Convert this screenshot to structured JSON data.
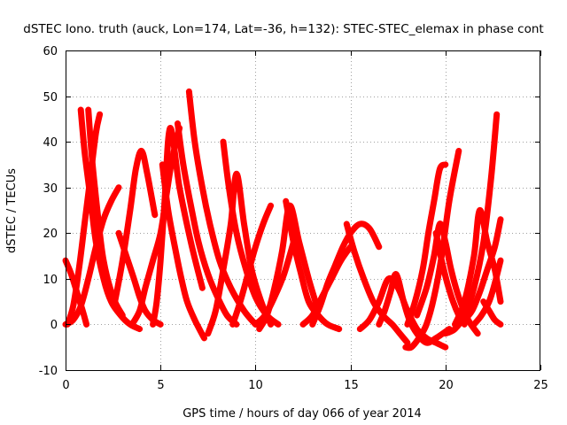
{
  "chart_data": {
    "type": "line",
    "title": "dSTEC Iono. truth (auck, Lon=174, Lat=-36, h=132): STEC-STEC_elemax in phase cont",
    "xlabel": "GPS time / hours of day 066 of year 2014",
    "ylabel": "dSTEC  / TECUs",
    "xlim": [
      0,
      25
    ],
    "ylim": [
      -10,
      60
    ],
    "xticks": [
      0,
      5,
      10,
      15,
      20,
      25
    ],
    "yticks": [
      -10,
      0,
      10,
      20,
      30,
      40,
      50,
      60
    ],
    "grid": true,
    "legend": "none",
    "color": "#ff0000",
    "marker": "plus",
    "series": [
      {
        "x": [
          0.0,
          0.3,
          0.6,
          0.9,
          1.1
        ],
        "y": [
          14,
          11,
          7,
          3,
          0
        ]
      },
      {
        "x": [
          0.0,
          0.4,
          0.8,
          1.2,
          1.6,
          2.0,
          2.4,
          2.8
        ],
        "y": [
          0,
          1,
          4,
          10,
          17,
          23,
          27,
          30
        ]
      },
      {
        "x": [
          0.8,
          1.0,
          1.3,
          1.6,
          2.0,
          2.4,
          2.9,
          3.4,
          3.9
        ],
        "y": [
          47,
          38,
          28,
          18,
          10,
          5,
          2,
          0,
          -1
        ]
      },
      {
        "x": [
          1.2,
          1.4,
          1.7,
          2.0,
          2.5,
          3.0
        ],
        "y": [
          47,
          36,
          24,
          14,
          6,
          2
        ]
      },
      {
        "x": [
          0.1,
          0.4,
          0.7,
          1.0,
          1.3,
          1.6,
          1.8
        ],
        "y": [
          0,
          4,
          12,
          22,
          32,
          42,
          46
        ]
      },
      {
        "x": [
          2.8,
          3.2,
          3.6,
          3.9,
          4.2,
          4.6,
          5.0
        ],
        "y": [
          20,
          15,
          10,
          6,
          3,
          1,
          0
        ]
      },
      {
        "x": [
          2.6,
          3.0,
          3.4,
          3.7,
          4.0,
          4.3,
          4.7
        ],
        "y": [
          5,
          14,
          25,
          34,
          38,
          33,
          24
        ]
      },
      {
        "x": [
          3.5,
          3.9,
          4.2,
          4.6,
          5.0,
          5.3,
          5.6,
          6.0
        ],
        "y": [
          0,
          3,
          8,
          14,
          20,
          28,
          36,
          43
        ]
      },
      {
        "x": [
          4.6,
          4.8,
          5.0,
          5.2,
          5.5,
          6.0,
          6.6,
          7.2
        ],
        "y": [
          0,
          5,
          14,
          26,
          43,
          30,
          18,
          8
        ]
      },
      {
        "x": [
          5.1,
          5.4,
          5.8,
          6.1,
          6.4,
          6.8,
          7.3
        ],
        "y": [
          35,
          25,
          16,
          10,
          5,
          1,
          -3
        ]
      },
      {
        "x": [
          5.9,
          6.2,
          6.6,
          7.0,
          7.5,
          8.0,
          8.5,
          9.0
        ],
        "y": [
          44,
          35,
          26,
          18,
          11,
          6,
          2,
          0
        ]
      },
      {
        "x": [
          6.5,
          6.8,
          7.2,
          7.6,
          8.1,
          8.7,
          9.4,
          10.0
        ],
        "y": [
          51,
          40,
          30,
          22,
          14,
          8,
          3,
          0
        ]
      },
      {
        "x": [
          8.3,
          8.6,
          9.0,
          9.5,
          10.0,
          10.6,
          11.2
        ],
        "y": [
          40,
          30,
          20,
          12,
          6,
          2,
          0
        ]
      },
      {
        "x": [
          7.5,
          7.9,
          8.3,
          8.7,
          9.0,
          9.4,
          9.8,
          10.3,
          10.8
        ],
        "y": [
          -2,
          3,
          12,
          22,
          33,
          22,
          12,
          5,
          0
        ]
      },
      {
        "x": [
          8.8,
          9.2,
          9.6,
          10.0,
          10.4,
          10.8
        ],
        "y": [
          0,
          5,
          11,
          17,
          22,
          26
        ]
      },
      {
        "x": [
          10.2,
          10.6,
          11.0,
          11.4,
          11.8,
          12.3,
          12.8,
          13.3
        ],
        "y": [
          -1,
          2,
          8,
          16,
          26,
          18,
          10,
          3
        ]
      },
      {
        "x": [
          11.6,
          12.0,
          12.4,
          12.8,
          13.3,
          13.8,
          14.4
        ],
        "y": [
          27,
          18,
          11,
          5,
          2,
          0,
          -1
        ]
      },
      {
        "x": [
          10.0,
          10.5,
          11.0,
          11.5,
          12.0
        ],
        "y": [
          0,
          2,
          6,
          11,
          18
        ]
      },
      {
        "x": [
          12.5,
          13.0,
          13.5,
          14.0,
          14.5,
          15.0
        ],
        "y": [
          0,
          2,
          6,
          10,
          14,
          17
        ]
      },
      {
        "x": [
          13.0,
          13.4,
          13.8,
          14.2,
          14.6,
          15.0,
          15.5,
          16.0,
          16.5
        ],
        "y": [
          0,
          4,
          9,
          13,
          17,
          20,
          22,
          21,
          17
        ]
      },
      {
        "x": [
          14.8,
          15.2,
          15.7,
          16.2,
          16.7,
          17.2,
          17.6,
          18.0
        ],
        "y": [
          22,
          16,
          10,
          5,
          2,
          0,
          -2,
          -4
        ]
      },
      {
        "x": [
          15.5,
          16.0,
          16.5,
          17.0,
          17.5,
          18.0,
          18.5,
          19.0,
          19.5,
          20.0
        ],
        "y": [
          -1,
          1,
          5,
          10,
          8,
          3,
          -1,
          -3,
          -4,
          -5
        ]
      },
      {
        "x": [
          16.5,
          16.8,
          17.1,
          17.4,
          17.8,
          18.1,
          18.5,
          19.0,
          19.5,
          20.2
        ],
        "y": [
          0,
          3,
          7,
          11,
          5,
          1,
          -2,
          -4,
          -3,
          -1
        ]
      },
      {
        "x": [
          17.9,
          18.2,
          18.6,
          19.0,
          19.4,
          19.8,
          20.2,
          20.7
        ],
        "y": [
          -5,
          -5,
          -3,
          0,
          6,
          15,
          27,
          38
        ]
      },
      {
        "x": [
          18.0,
          18.4,
          18.8,
          19.1,
          19.4,
          19.7,
          20.0
        ],
        "y": [
          0,
          5,
          12,
          20,
          27,
          34,
          35
        ]
      },
      {
        "x": [
          18.5,
          19.0,
          19.4,
          19.7,
          20.0,
          20.3,
          20.7,
          21.2,
          21.7
        ],
        "y": [
          2,
          8,
          15,
          22,
          18,
          12,
          6,
          1,
          -2
        ]
      },
      {
        "x": [
          19.5,
          19.8,
          20.1,
          20.4,
          20.7,
          21.0
        ],
        "y": [
          20,
          14,
          9,
          5,
          2,
          0
        ]
      },
      {
        "x": [
          20.0,
          20.5,
          21.0,
          21.5,
          22.0,
          22.4,
          22.7
        ],
        "y": [
          -2,
          -1,
          2,
          8,
          18,
          32,
          46
        ]
      },
      {
        "x": [
          20.5,
          21.0,
          21.5,
          21.8,
          22.2,
          22.6,
          22.9
        ],
        "y": [
          0,
          5,
          15,
          25,
          18,
          12,
          5
        ]
      },
      {
        "x": [
          21.0,
          21.4,
          21.8,
          22.2,
          22.6,
          22.9
        ],
        "y": [
          1,
          3,
          7,
          12,
          17,
          23
        ]
      },
      {
        "x": [
          21.5,
          21.9,
          22.3,
          22.6,
          22.9
        ],
        "y": [
          0,
          2,
          5,
          9,
          14
        ]
      },
      {
        "x": [
          22.0,
          22.3,
          22.6,
          22.9
        ],
        "y": [
          5,
          3,
          1,
          0
        ]
      }
    ]
  }
}
